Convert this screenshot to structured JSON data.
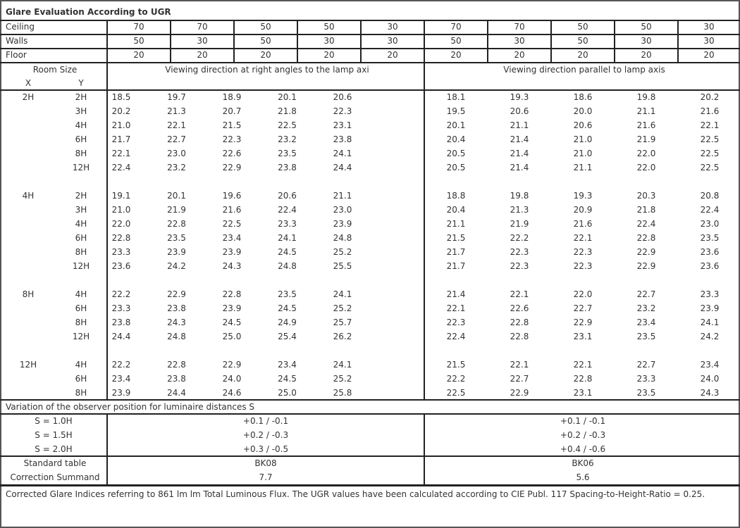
{
  "title": "Glare Evaluation According to UGR",
  "reflectance": [
    {
      "label": "Ceiling",
      "values": [
        "70",
        "70",
        "50",
        "50",
        "30",
        "70",
        "70",
        "50",
        "50",
        "30"
      ]
    },
    {
      "label": "Walls",
      "values": [
        "50",
        "30",
        "50",
        "30",
        "30",
        "50",
        "30",
        "50",
        "30",
        "30"
      ]
    },
    {
      "label": "Floor",
      "values": [
        "20",
        "20",
        "20",
        "20",
        "20",
        "20",
        "20",
        "20",
        "20",
        "20"
      ]
    }
  ],
  "room_size_label": "Room Size",
  "x_label": "X",
  "y_label": "Y",
  "direction_perpendicular": "Viewing direction at right angles to the lamp axi",
  "direction_parallel": "Viewing direction parallel to lamp axis",
  "groups": [
    {
      "x": "2H",
      "rows": [
        {
          "y": "2H",
          "perp": [
            "18.5",
            "19.7",
            "18.9",
            "20.1",
            "20.6"
          ],
          "par": [
            "18.1",
            "19.3",
            "18.6",
            "19.8",
            "20.2"
          ]
        },
        {
          "y": "3H",
          "perp": [
            "20.2",
            "21.3",
            "20.7",
            "21.8",
            "22.3"
          ],
          "par": [
            "19.5",
            "20.6",
            "20.0",
            "21.1",
            "21.6"
          ]
        },
        {
          "y": "4H",
          "perp": [
            "21.0",
            "22.1",
            "21.5",
            "22.5",
            "23.1"
          ],
          "par": [
            "20.1",
            "21.1",
            "20.6",
            "21.6",
            "22.1"
          ]
        },
        {
          "y": "6H",
          "perp": [
            "21.7",
            "22.7",
            "22.3",
            "23.2",
            "23.8"
          ],
          "par": [
            "20.4",
            "21.4",
            "21.0",
            "21.9",
            "22.5"
          ]
        },
        {
          "y": "8H",
          "perp": [
            "22.1",
            "23.0",
            "22.6",
            "23.5",
            "24.1"
          ],
          "par": [
            "20.5",
            "21.4",
            "21.0",
            "22.0",
            "22.5"
          ]
        },
        {
          "y": "12H",
          "perp": [
            "22.4",
            "23.2",
            "22.9",
            "23.8",
            "24.4"
          ],
          "par": [
            "20.5",
            "21.4",
            "21.1",
            "22.0",
            "22.5"
          ]
        }
      ]
    },
    {
      "x": "4H",
      "rows": [
        {
          "y": "2H",
          "perp": [
            "19.1",
            "20.1",
            "19.6",
            "20.6",
            "21.1"
          ],
          "par": [
            "18.8",
            "19.8",
            "19.3",
            "20.3",
            "20.8"
          ]
        },
        {
          "y": "3H",
          "perp": [
            "21.0",
            "21.9",
            "21.6",
            "22.4",
            "23.0"
          ],
          "par": [
            "20.4",
            "21.3",
            "20.9",
            "21.8",
            "22.4"
          ]
        },
        {
          "y": "4H",
          "perp": [
            "22.0",
            "22.8",
            "22.5",
            "23.3",
            "23.9"
          ],
          "par": [
            "21.1",
            "21.9",
            "21.6",
            "22.4",
            "23.0"
          ]
        },
        {
          "y": "6H",
          "perp": [
            "22.8",
            "23.5",
            "23.4",
            "24.1",
            "24.8"
          ],
          "par": [
            "21.5",
            "22.2",
            "22.1",
            "22.8",
            "23.5"
          ]
        },
        {
          "y": "8H",
          "perp": [
            "23.3",
            "23.9",
            "23.9",
            "24.5",
            "25.2"
          ],
          "par": [
            "21.7",
            "22.3",
            "22.3",
            "22.9",
            "23.6"
          ]
        },
        {
          "y": "12H",
          "perp": [
            "23.6",
            "24.2",
            "24.3",
            "24.8",
            "25.5"
          ],
          "par": [
            "21.7",
            "22.3",
            "22.3",
            "22.9",
            "23.6"
          ]
        }
      ]
    },
    {
      "x": "8H",
      "rows": [
        {
          "y": "4H",
          "perp": [
            "22.2",
            "22.9",
            "22.8",
            "23.5",
            "24.1"
          ],
          "par": [
            "21.4",
            "22.1",
            "22.0",
            "22.7",
            "23.3"
          ]
        },
        {
          "y": "6H",
          "perp": [
            "23.3",
            "23.8",
            "23.9",
            "24.5",
            "25.2"
          ],
          "par": [
            "22.1",
            "22.6",
            "22.7",
            "23.2",
            "23.9"
          ]
        },
        {
          "y": "8H",
          "perp": [
            "23.8",
            "24.3",
            "24.5",
            "24.9",
            "25.7"
          ],
          "par": [
            "22.3",
            "22.8",
            "22.9",
            "23.4",
            "24.1"
          ]
        },
        {
          "y": "12H",
          "perp": [
            "24.4",
            "24.8",
            "25.0",
            "25.4",
            "26.2"
          ],
          "par": [
            "22.4",
            "22.8",
            "23.1",
            "23.5",
            "24.2"
          ]
        }
      ]
    },
    {
      "x": "12H",
      "rows": [
        {
          "y": "4H",
          "perp": [
            "22.2",
            "22.8",
            "22.9",
            "23.4",
            "24.1"
          ],
          "par": [
            "21.5",
            "22.1",
            "22.1",
            "22.7",
            "23.4"
          ]
        },
        {
          "y": "6H",
          "perp": [
            "23.4",
            "23.8",
            "24.0",
            "24.5",
            "25.2"
          ],
          "par": [
            "22.2",
            "22.7",
            "22.8",
            "23.3",
            "24.0"
          ]
        },
        {
          "y": "8H",
          "perp": [
            "23.9",
            "24.4",
            "24.6",
            "25.0",
            "25.8"
          ],
          "par": [
            "22.5",
            "22.9",
            "23.1",
            "23.5",
            "24.3"
          ]
        }
      ]
    }
  ],
  "variation_label": "Variation of the observer position for luminaire distances S",
  "variation": [
    {
      "s": "S = 1.0H",
      "perp": "+0.1 / -0.1",
      "par": "+0.1 / -0.1"
    },
    {
      "s": "S = 1.5H",
      "perp": "+0.2 / -0.3",
      "par": "+0.2 / -0.3"
    },
    {
      "s": "S = 2.0H",
      "perp": "+0.3 / -0.5",
      "par": "+0.4 / -0.6"
    }
  ],
  "standard_table": {
    "label": "Standard table",
    "perp": "BK08",
    "par": "BK06"
  },
  "correction_summand": {
    "label": "Correction Summand",
    "perp": "7.7",
    "par": "5.6"
  },
  "footnote": "Corrected Glare Indices referring to 861 lm lm Total Luminous Flux. The UGR values have been calculated according to CIE Publ. 117    Spacing-to-Height-Ratio = 0.25."
}
